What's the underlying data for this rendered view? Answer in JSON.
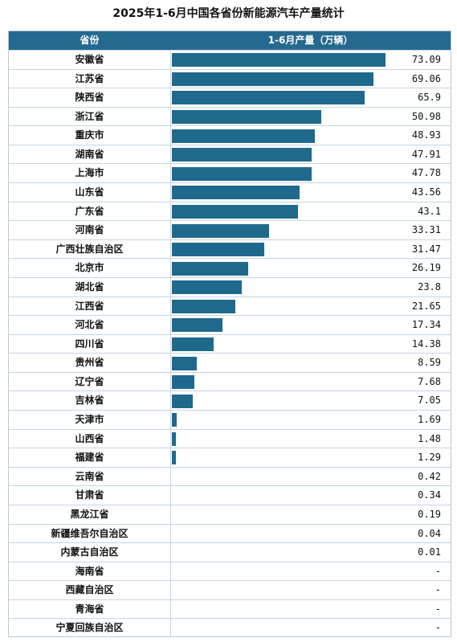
{
  "chart_data": {
    "type": "bar",
    "title": "2025年1-6月中国各省份新能源汽车产量统计",
    "header": {
      "province": "省份",
      "value": "1-6月产量（万辆）"
    },
    "max_value": 73.09,
    "bar_color": "#1f6a8c",
    "header_color": "#246a8f",
    "rows": [
      {
        "province": "安徽省",
        "value": 73.09,
        "label": "73.09"
      },
      {
        "province": "江苏省",
        "value": 69.06,
        "label": "69.06"
      },
      {
        "province": "陕西省",
        "value": 65.9,
        "label": "65.9"
      },
      {
        "province": "浙江省",
        "value": 50.98,
        "label": "50.98"
      },
      {
        "province": "重庆市",
        "value": 48.93,
        "label": "48.93"
      },
      {
        "province": "湖南省",
        "value": 47.91,
        "label": "47.91"
      },
      {
        "province": "上海市",
        "value": 47.78,
        "label": "47.78"
      },
      {
        "province": "山东省",
        "value": 43.56,
        "label": "43.56"
      },
      {
        "province": "广东省",
        "value": 43.1,
        "label": "43.1"
      },
      {
        "province": "河南省",
        "value": 33.31,
        "label": "33.31"
      },
      {
        "province": "广西壮族自治区",
        "value": 31.47,
        "label": "31.47"
      },
      {
        "province": "北京市",
        "value": 26.19,
        "label": "26.19"
      },
      {
        "province": "湖北省",
        "value": 23.8,
        "label": "23.8"
      },
      {
        "province": "江西省",
        "value": 21.65,
        "label": "21.65"
      },
      {
        "province": "河北省",
        "value": 17.34,
        "label": "17.34"
      },
      {
        "province": "四川省",
        "value": 14.38,
        "label": "14.38"
      },
      {
        "province": "贵州省",
        "value": 8.59,
        "label": "8.59"
      },
      {
        "province": "辽宁省",
        "value": 7.68,
        "label": "7.68"
      },
      {
        "province": "吉林省",
        "value": 7.05,
        "label": "7.05"
      },
      {
        "province": "天津市",
        "value": 1.69,
        "label": "1.69"
      },
      {
        "province": "山西省",
        "value": 1.48,
        "label": "1.48"
      },
      {
        "province": "福建省",
        "value": 1.29,
        "label": "1.29"
      },
      {
        "province": "云南省",
        "value": 0.42,
        "label": "0.42"
      },
      {
        "province": "甘肃省",
        "value": 0.34,
        "label": "0.34"
      },
      {
        "province": "黑龙江省",
        "value": 0.19,
        "label": "0.19"
      },
      {
        "province": "新疆维吾尔自治区",
        "value": 0.04,
        "label": "0.04"
      },
      {
        "province": "内蒙古自治区",
        "value": 0.01,
        "label": "0.01"
      },
      {
        "province": "海南省",
        "value": null,
        "label": "-"
      },
      {
        "province": "西藏自治区",
        "value": null,
        "label": "-"
      },
      {
        "province": "青海省",
        "value": null,
        "label": "-"
      },
      {
        "province": "宁夏回族自治区",
        "value": null,
        "label": "-"
      }
    ]
  }
}
